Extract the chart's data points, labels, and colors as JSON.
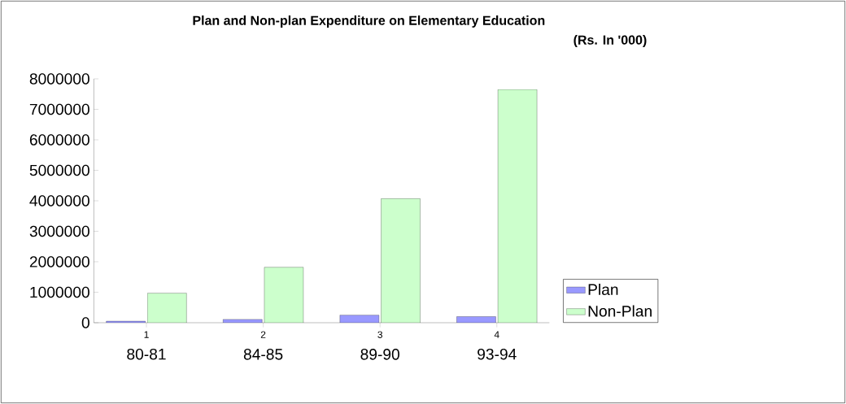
{
  "chart_data": {
    "type": "bar",
    "title": "Plan and Non-plan Expenditure on Elementary Education",
    "subtitle": "(Rs. In '000)",
    "categories": [
      "80-81",
      "84-85",
      "89-90",
      "93-94"
    ],
    "series": [
      {
        "name": "Plan",
        "color": "#9999ff",
        "values": [
          50000,
          110000,
          250000,
          200000
        ]
      },
      {
        "name": "Non-Plan",
        "color": "#ccffcc",
        "values": [
          970000,
          1820000,
          4070000,
          7650000
        ]
      }
    ],
    "annotations": [
      "1",
      "2",
      "3",
      "4"
    ],
    "ylim": [
      0,
      8000000
    ],
    "yticks": [
      0,
      1000000,
      2000000,
      3000000,
      4000000,
      5000000,
      6000000,
      7000000,
      8000000
    ],
    "legend": "right",
    "grid": false
  }
}
